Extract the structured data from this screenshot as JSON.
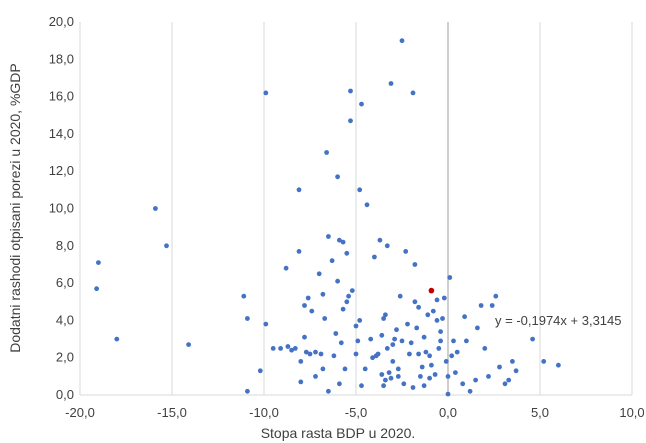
{
  "chart_data": {
    "type": "scatter",
    "title": "",
    "xlabel": "Stopa rasta BDP u 2020.",
    "ylabel": "Dodatni rashodi otpisani porezi u 2020, %GDP",
    "xlim": [
      -20,
      10
    ],
    "ylim": [
      0,
      20
    ],
    "x_ticks": [
      -20,
      -15,
      -10,
      -5,
      0,
      5,
      10
    ],
    "y_ticks": [
      0,
      2,
      4,
      6,
      8,
      10,
      12,
      14,
      16,
      18,
      20
    ],
    "x_tick_labels": [
      "-20,0",
      "-15,0",
      "-10,0",
      "-5,0",
      "0,0",
      "5,0",
      "10,0"
    ],
    "y_tick_labels": [
      "0,0",
      "2,0",
      "4,0",
      "6,0",
      "8,0",
      "10,0",
      "12,0",
      "14,0",
      "16,0",
      "18,0",
      "20,0"
    ],
    "grid": {
      "vertical": true,
      "horizontal": false
    },
    "zero_line_x": 0,
    "annotation": "y = -0,1974x + 3,3145",
    "colors": {
      "points": "#4472C4",
      "highlight": "#C00000",
      "grid": "#D9D9D9",
      "zero_line": "#BFBFBF"
    },
    "series": [
      {
        "points": [
          [
            -19,
            7.1
          ],
          [
            -19.1,
            5.7
          ],
          [
            -18,
            3.0
          ],
          [
            -15.9,
            10
          ],
          [
            -15.3,
            8.0
          ],
          [
            -14.1,
            2.7
          ],
          [
            -11.1,
            5.3
          ],
          [
            -10.9,
            4.1
          ],
          [
            -10.9,
            0.2
          ],
          [
            -10.2,
            1.3
          ],
          [
            -9.9,
            3.8
          ],
          [
            -9.9,
            16.2
          ],
          [
            -9.5,
            2.5
          ],
          [
            -9.1,
            2.5
          ],
          [
            -8.8,
            6.8
          ],
          [
            -8.7,
            2.6
          ],
          [
            -8.5,
            2.4
          ],
          [
            -8.3,
            2.5
          ],
          [
            -8.1,
            7.7
          ],
          [
            -8.1,
            11.0
          ],
          [
            -8.0,
            1.8
          ],
          [
            -8.0,
            0.7
          ],
          [
            -7.8,
            3.1
          ],
          [
            -7.8,
            4.8
          ],
          [
            -7.7,
            2.3
          ],
          [
            -7.6,
            5.2
          ],
          [
            -7.5,
            2.2
          ],
          [
            -7.4,
            4.5
          ],
          [
            -7.2,
            1.0
          ],
          [
            -7.2,
            2.3
          ],
          [
            -7.0,
            6.5
          ],
          [
            -6.9,
            2.2
          ],
          [
            -6.8,
            1.4
          ],
          [
            -6.8,
            5.4
          ],
          [
            -6.7,
            4.1
          ],
          [
            -6.6,
            13.0
          ],
          [
            -6.5,
            8.5
          ],
          [
            -6.5,
            0.2
          ],
          [
            -6.3,
            7.2
          ],
          [
            -6.2,
            2.1
          ],
          [
            -6.1,
            3.3
          ],
          [
            -6.0,
            6.1
          ],
          [
            -6.0,
            11.7
          ],
          [
            -5.9,
            0.6
          ],
          [
            -5.9,
            8.3
          ],
          [
            -5.8,
            2.8
          ],
          [
            -5.7,
            8.2
          ],
          [
            -5.7,
            4.6
          ],
          [
            -5.6,
            1.4
          ],
          [
            -5.5,
            5.0
          ],
          [
            -5.5,
            7.6
          ],
          [
            -5.4,
            5.3
          ],
          [
            -5.3,
            16.3
          ],
          [
            -5.3,
            14.7
          ],
          [
            -5.2,
            5.6
          ],
          [
            -5.0,
            2.2
          ],
          [
            -5.0,
            3.7
          ],
          [
            -4.9,
            2.9
          ],
          [
            -4.8,
            11.0
          ],
          [
            -4.8,
            4.0
          ],
          [
            -4.7,
            0.5
          ],
          [
            -4.7,
            15.6
          ],
          [
            -4.5,
            1.4
          ],
          [
            -4.4,
            10.2
          ],
          [
            -4.2,
            3.0
          ],
          [
            -4.1,
            2.0
          ],
          [
            -4.0,
            7.4
          ],
          [
            -3.9,
            2.1
          ],
          [
            -3.8,
            2.2
          ],
          [
            -3.7,
            8.3
          ],
          [
            -3.6,
            1.1
          ],
          [
            -3.6,
            3.2
          ],
          [
            -3.5,
            4.1
          ],
          [
            -3.5,
            0.5
          ],
          [
            -3.4,
            0.8
          ],
          [
            -3.4,
            4.3
          ],
          [
            -3.3,
            2.5
          ],
          [
            -3.3,
            8.0
          ],
          [
            -3.2,
            1.2
          ],
          [
            -3.1,
            16.7
          ],
          [
            -3.1,
            0.9
          ],
          [
            -3.0,
            2.7
          ],
          [
            -3.0,
            1.8
          ],
          [
            -2.9,
            3.0
          ],
          [
            -2.8,
            3.5
          ],
          [
            -2.7,
            1.0
          ],
          [
            -2.7,
            1.4
          ],
          [
            -2.6,
            5.3
          ],
          [
            -2.5,
            19.0
          ],
          [
            -2.5,
            2.9
          ],
          [
            -2.4,
            0.6
          ],
          [
            -2.3,
            7.7
          ],
          [
            -2.2,
            3.8
          ],
          [
            -2.1,
            2.2
          ],
          [
            -2.0,
            2.8
          ],
          [
            -1.9,
            0.4
          ],
          [
            -1.9,
            16.2
          ],
          [
            -1.8,
            5.0
          ],
          [
            -1.8,
            7.0
          ],
          [
            -1.7,
            3.6
          ],
          [
            -1.6,
            2.2
          ],
          [
            -1.6,
            4.7
          ],
          [
            -1.5,
            1.0
          ],
          [
            -1.4,
            1.5
          ],
          [
            -1.3,
            3.1
          ],
          [
            -1.3,
            0.5
          ],
          [
            -1.2,
            2.3
          ],
          [
            -1.1,
            4.3
          ],
          [
            -1.0,
            0.9
          ],
          [
            -1.0,
            2.1
          ],
          [
            -0.9,
            1.6
          ],
          [
            -0.8,
            4.5
          ],
          [
            -0.7,
            1.1
          ],
          [
            -0.6,
            5.1
          ],
          [
            -0.6,
            4.0
          ],
          [
            -0.5,
            2.5
          ],
          [
            -0.4,
            3.4
          ],
          [
            -0.4,
            2.9
          ],
          [
            -0.3,
            4.1
          ],
          [
            -0.2,
            5.2
          ],
          [
            -0.1,
            1.8
          ],
          [
            0,
            0.05
          ],
          [
            0.0,
            1.0
          ],
          [
            0.1,
            6.3
          ],
          [
            0.2,
            2.1
          ],
          [
            0.3,
            2.9
          ],
          [
            0.4,
            1.2
          ],
          [
            0.5,
            2.3
          ],
          [
            0.8,
            0.6
          ],
          [
            0.9,
            4.2
          ],
          [
            1.0,
            2.9
          ],
          [
            1.2,
            0.2
          ],
          [
            1.5,
            0.8
          ],
          [
            1.6,
            3.6
          ],
          [
            1.8,
            4.8
          ],
          [
            2.0,
            2.5
          ],
          [
            2.2,
            1.0
          ],
          [
            2.4,
            4.8
          ],
          [
            2.6,
            5.3
          ],
          [
            2.8,
            1.5
          ],
          [
            3.1,
            0.6
          ],
          [
            3.3,
            0.8
          ],
          [
            3.5,
            1.8
          ],
          [
            3.7,
            1.3
          ],
          [
            4.6,
            3.0
          ],
          [
            5.2,
            1.8
          ],
          [
            6.0,
            1.6
          ]
        ]
      }
    ],
    "highlight_point": [
      -0.9,
      5.6
    ]
  }
}
